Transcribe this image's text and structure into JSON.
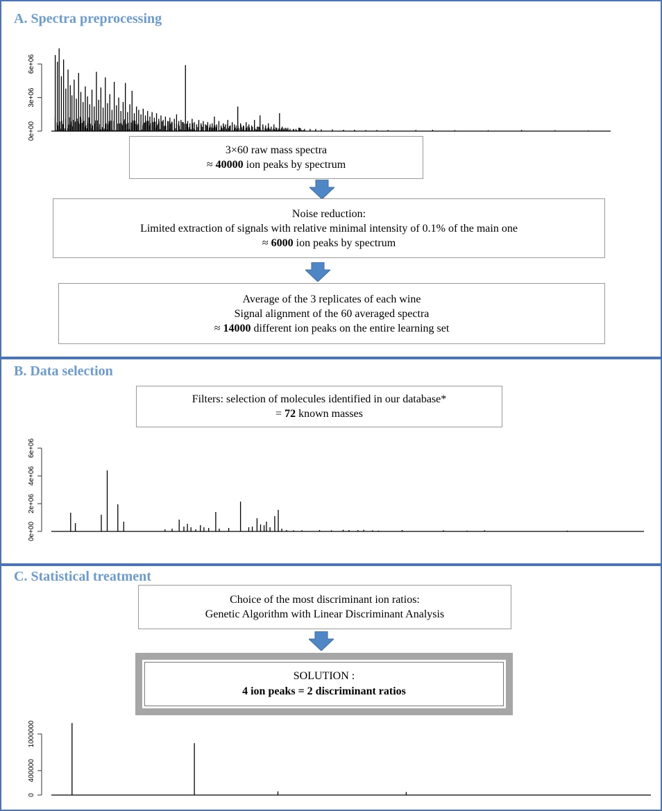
{
  "sections": {
    "a": {
      "title": "A. Spectra preprocessing",
      "box1": {
        "line1": "3×60 raw mass spectra",
        "line2_prefix": "≈ ",
        "line2_bold": "40000",
        "line2_suffix": " ion peaks by spectrum"
      },
      "box2": {
        "line1": "Noise reduction:",
        "line2": "Limited extraction of signals with relative minimal intensity of 0.1% of the main one",
        "line3_prefix": "≈ ",
        "line3_bold": "6000",
        "line3_suffix": " ion peaks by spectrum"
      },
      "box3": {
        "line1": "Average of the 3 replicates of each wine",
        "line2": "Signal alignment of the 60 averaged spectra",
        "line3_prefix": "≈ ",
        "line3_bold": "14000",
        "line3_suffix": " different ion peaks on the entire learning set"
      }
    },
    "b": {
      "title": "B. Data selection",
      "box": {
        "line1": "Filters:  selection of molecules identified in our database*",
        "line2_prefix": "= ",
        "line2_bold": "72",
        "line2_suffix": " known masses"
      }
    },
    "c": {
      "title": "C. Statistical treatment",
      "box": {
        "line1": "Choice of the most discriminant ion ratios:",
        "line2": "Genetic Algorithm with Linear Discriminant Analysis"
      },
      "solution": {
        "line1": "SOLUTION :",
        "line2": "4 ion peaks = 2 discriminant ratios"
      }
    }
  },
  "colors": {
    "panel_border": "#4a74b6",
    "title": "#6a9bd3",
    "arrow": "#4f86c6",
    "solution_frame": "#a6a6a6"
  },
  "chart_data": [
    {
      "type": "bar",
      "ylim": [
        0,
        7500000
      ],
      "yticks": [
        "0e+00",
        "3e+06",
        "6e+06"
      ],
      "ytick_values": [
        0,
        3000000,
        6000000
      ],
      "xlim": [
        0,
        100
      ],
      "peaks": [
        [
          0.2,
          6.8
        ],
        [
          0.6,
          6.2
        ],
        [
          0.9,
          7.4
        ],
        [
          1.3,
          4.9
        ],
        [
          1.7,
          6.4
        ],
        [
          2.1,
          3.8
        ],
        [
          2.5,
          5.5
        ],
        [
          2.9,
          4.1
        ],
        [
          3.2,
          3.2
        ],
        [
          3.6,
          4.6
        ],
        [
          4.0,
          2.9
        ],
        [
          4.4,
          5.2
        ],
        [
          4.8,
          3.5
        ],
        [
          5.2,
          2.6
        ],
        [
          5.6,
          4.0
        ],
        [
          6.0,
          3.1
        ],
        [
          6.4,
          2.4
        ],
        [
          6.8,
          3.7
        ],
        [
          7.2,
          2.2
        ],
        [
          7.6,
          5.3
        ],
        [
          8.0,
          2.8
        ],
        [
          8.4,
          3.9
        ],
        [
          8.8,
          2.1
        ],
        [
          9.2,
          4.8
        ],
        [
          9.6,
          2.5
        ],
        [
          10.0,
          3.3
        ],
        [
          10.4,
          1.9
        ],
        [
          10.8,
          4.4
        ],
        [
          11.2,
          2.3
        ],
        [
          11.6,
          3.0
        ],
        [
          12.0,
          1.8
        ],
        [
          12.4,
          2.6
        ],
        [
          12.8,
          4.3
        ],
        [
          13.2,
          1.7
        ],
        [
          13.6,
          2.4
        ],
        [
          14.0,
          3.6
        ],
        [
          14.4,
          1.6
        ],
        [
          14.8,
          2.2
        ],
        [
          15.2,
          1.9
        ],
        [
          15.6,
          1.5
        ],
        [
          16.0,
          2.0
        ],
        [
          16.4,
          1.4
        ],
        [
          16.8,
          1.8
        ],
        [
          17.2,
          1.3
        ],
        [
          17.6,
          1.7
        ],
        [
          18.0,
          1.2
        ],
        [
          18.4,
          1.6
        ],
        [
          18.8,
          1.1
        ],
        [
          19.2,
          1.4
        ],
        [
          19.6,
          1.0
        ],
        [
          20.0,
          1.3
        ],
        [
          20.4,
          0.9
        ],
        [
          20.8,
          1.2
        ],
        [
          21.2,
          0.8
        ],
        [
          21.6,
          1.1
        ],
        [
          22.0,
          1.5
        ],
        [
          22.4,
          0.9
        ],
        [
          22.8,
          1.0
        ],
        [
          23.2,
          0.8
        ],
        [
          23.6,
          5.9
        ],
        [
          24.0,
          0.9
        ],
        [
          24.4,
          0.7
        ],
        [
          24.8,
          1.1
        ],
        [
          25.2,
          0.8
        ],
        [
          25.6,
          0.6
        ],
        [
          26.0,
          1.0
        ],
        [
          26.4,
          0.7
        ],
        [
          26.8,
          0.9
        ],
        [
          27.2,
          0.6
        ],
        [
          27.6,
          0.8
        ],
        [
          28.0,
          0.5
        ],
        [
          28.4,
          0.7
        ],
        [
          28.8,
          1.3
        ],
        [
          29.2,
          0.6
        ],
        [
          29.6,
          0.9
        ],
        [
          30.0,
          0.5
        ],
        [
          30.4,
          0.7
        ],
        [
          30.8,
          0.6
        ],
        [
          31.2,
          1.0
        ],
        [
          31.6,
          0.5
        ],
        [
          32.0,
          0.8
        ],
        [
          32.4,
          0.6
        ],
        [
          33.0,
          2.2
        ],
        [
          33.5,
          0.7
        ],
        [
          34.0,
          0.5
        ],
        [
          34.5,
          0.8
        ],
        [
          35.0,
          0.6
        ],
        [
          35.5,
          0.5
        ],
        [
          36.0,
          1.0
        ],
        [
          36.5,
          0.4
        ],
        [
          37.0,
          1.4
        ],
        [
          37.5,
          0.6
        ],
        [
          38.0,
          0.5
        ],
        [
          38.5,
          0.7
        ],
        [
          39.0,
          0.4
        ],
        [
          39.5,
          0.6
        ],
        [
          40.0,
          0.3
        ],
        [
          40.5,
          1.6
        ],
        [
          41.0,
          0.4
        ],
        [
          41.5,
          0.3
        ],
        [
          42.0,
          0.3
        ],
        [
          43.0,
          0.2
        ],
        [
          44.0,
          0.3
        ],
        [
          45.0,
          0.2
        ],
        [
          46.0,
          0.2
        ],
        [
          47.0,
          0.2
        ],
        [
          48.0,
          0.15
        ],
        [
          50.0,
          0.15
        ],
        [
          52.0,
          0.12
        ],
        [
          54.0,
          0.12
        ],
        [
          56.0,
          0.1
        ],
        [
          58.0,
          0.1
        ],
        [
          60.0,
          0.1
        ],
        [
          65.0,
          0.1
        ],
        [
          68.0,
          0.12
        ],
        [
          72.0,
          0.08
        ],
        [
          78.0,
          0.08
        ],
        [
          84.0,
          0.1
        ],
        [
          90.0,
          0.08
        ],
        [
          96.0,
          0.06
        ]
      ]
    },
    {
      "type": "bar",
      "ylim": [
        0,
        6500000
      ],
      "yticks": [
        "0e+00",
        "2e+06",
        "4e+06",
        "6e+06"
      ],
      "ytick_values": [
        0,
        2000000,
        4000000,
        6000000
      ],
      "xlim": [
        0,
        100
      ],
      "peaks": [
        [
          2.8,
          1.35
        ],
        [
          3.6,
          0.6
        ],
        [
          8.0,
          1.2
        ],
        [
          9.0,
          4.4
        ],
        [
          10.8,
          1.95
        ],
        [
          11.8,
          0.7
        ],
        [
          18.8,
          0.15
        ],
        [
          20.0,
          0.2
        ],
        [
          21.2,
          0.85
        ],
        [
          22.0,
          0.35
        ],
        [
          22.6,
          0.55
        ],
        [
          23.2,
          0.3
        ],
        [
          24.0,
          0.15
        ],
        [
          24.8,
          0.45
        ],
        [
          25.4,
          0.3
        ],
        [
          26.2,
          0.25
        ],
        [
          27.4,
          1.4
        ],
        [
          28.0,
          0.2
        ],
        [
          29.6,
          0.25
        ],
        [
          31.6,
          2.15
        ],
        [
          33.0,
          0.3
        ],
        [
          33.6,
          0.35
        ],
        [
          34.4,
          0.95
        ],
        [
          35.0,
          0.5
        ],
        [
          35.6,
          0.45
        ],
        [
          36.0,
          0.7
        ],
        [
          36.6,
          0.3
        ],
        [
          37.4,
          1.1
        ],
        [
          38.0,
          1.55
        ],
        [
          38.6,
          0.2
        ],
        [
          39.4,
          0.1
        ],
        [
          40.6,
          0.08
        ],
        [
          42.0,
          0.08
        ],
        [
          45.0,
          0.1
        ],
        [
          47.0,
          0.08
        ],
        [
          49.0,
          0.12
        ],
        [
          50.0,
          0.1
        ],
        [
          51.5,
          0.1
        ],
        [
          52.5,
          0.12
        ],
        [
          54.0,
          0.08
        ],
        [
          55.0,
          0.06
        ],
        [
          59.0,
          0.1
        ],
        [
          66.0,
          0.08
        ],
        [
          70.0,
          0.06
        ],
        [
          73.0,
          0.08
        ],
        [
          87.0,
          0.06
        ]
      ]
    },
    {
      "type": "bar",
      "ylim": [
        0,
        1250000
      ],
      "yticks": [
        "0",
        "400000",
        "1000000"
      ],
      "ytick_values": [
        0,
        400000,
        1000000
      ],
      "xlim": [
        0,
        100
      ],
      "peaks": [
        [
          3.0,
          1.18
        ],
        [
          23.5,
          0.85
        ],
        [
          37.5,
          0.06
        ],
        [
          59.0,
          0.05
        ]
      ]
    }
  ]
}
